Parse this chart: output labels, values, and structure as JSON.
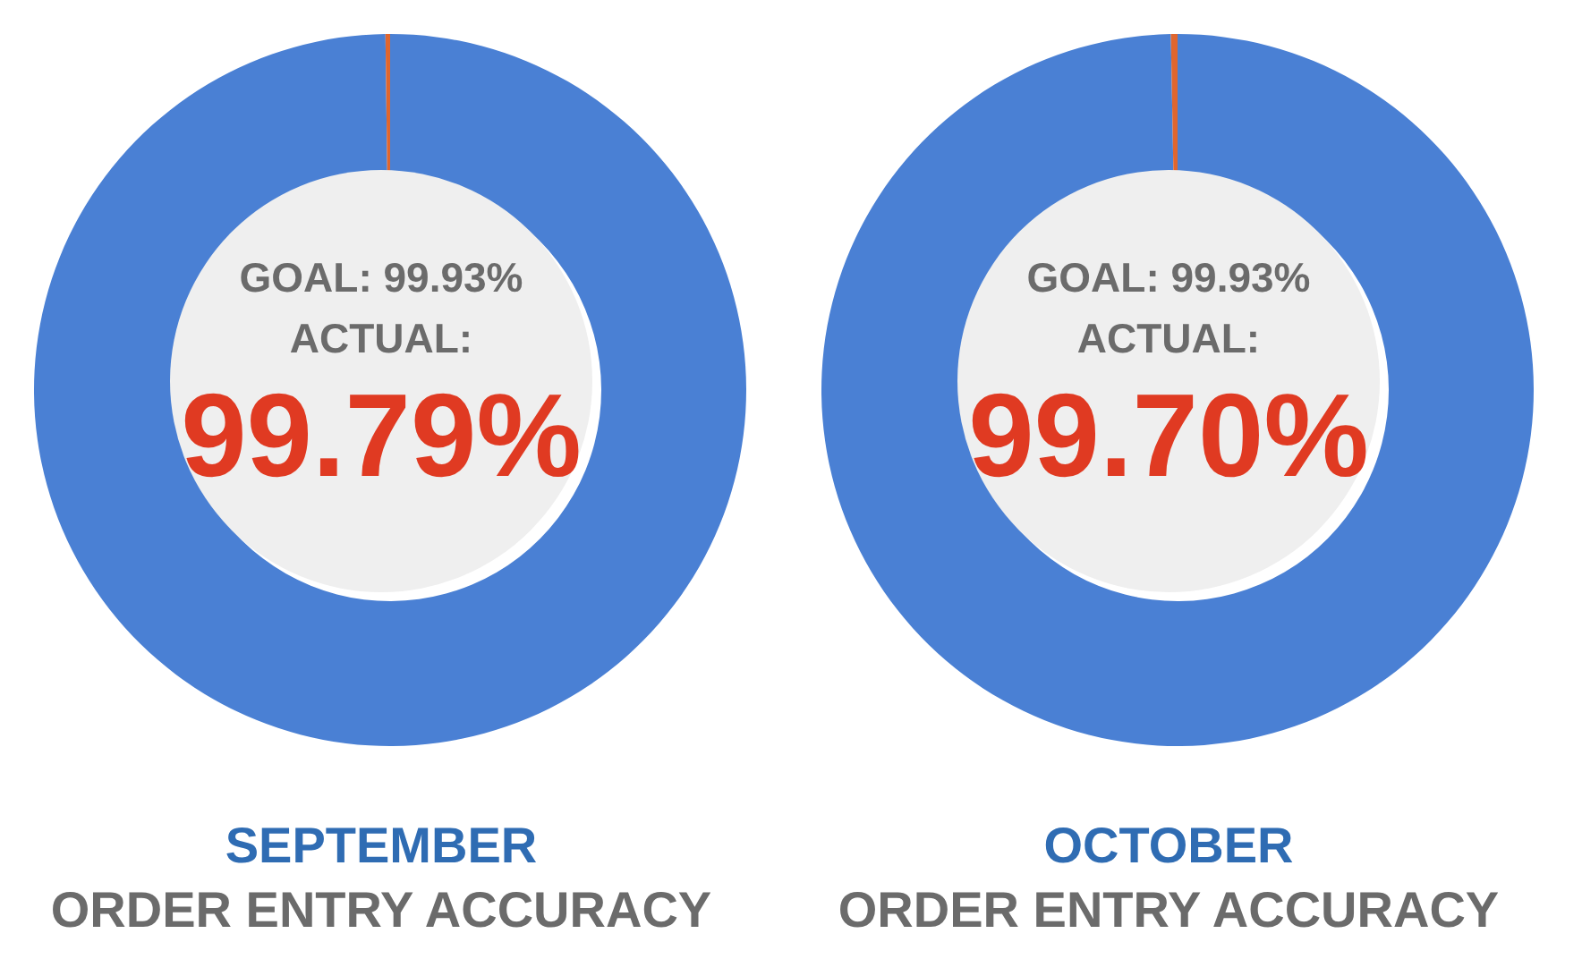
{
  "chart_data": [
    {
      "type": "donut",
      "title": "SEPTEMBER",
      "subtitle": "ORDER ENTRY ACCURACY",
      "annotations": [
        "GOAL: 99.93%",
        "ACTUAL:"
      ],
      "categories": [
        null,
        null
      ],
      "values": [
        99.79,
        0.21
      ],
      "colors": [
        "#4a80d4",
        "#e0662e"
      ],
      "value_labels": [
        "99.79%",
        null
      ]
    },
    {
      "type": "donut",
      "title": "OCTOBER",
      "subtitle": "ORDER ENTRY ACCURACY",
      "annotations": [
        "GOAL: 99.93%",
        "ACTUAL:"
      ],
      "categories": [
        null,
        null
      ],
      "values": [
        99.7,
        0.3
      ],
      "colors": [
        "#4a80d4",
        "#e0662e"
      ],
      "value_labels": [
        "99.70%",
        null
      ]
    }
  ]
}
